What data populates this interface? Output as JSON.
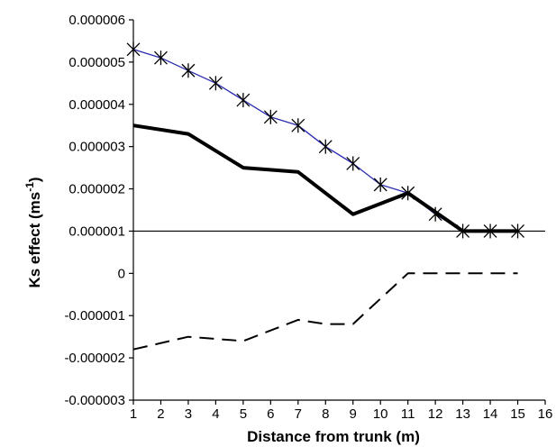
{
  "chart_data": {
    "type": "line",
    "title": "",
    "xlabel": "Distance from trunk (m)",
    "ylabel": "Ks effect (ms",
    "ylabel_superscript": "-1",
    "ylabel_suffix": ")",
    "xlim": [
      1,
      16
    ],
    "ylim": [
      -3e-06,
      6e-06
    ],
    "x_ticks": [
      "1",
      "2",
      "3",
      "4",
      "5",
      "6",
      "7",
      "8",
      "9",
      "10",
      "11",
      "12",
      "13",
      "14",
      "15",
      "16"
    ],
    "y_ticks": [
      "-0.000003",
      "-0.000002",
      "-0.000001",
      "0",
      "0.000001",
      "0.000002",
      "0.000003",
      "0.000004",
      "0.000005",
      "0.000006"
    ],
    "grid": false,
    "legend": "none",
    "series": [
      {
        "style": "blue-line-star-markers",
        "color": "#2b2bb0",
        "x": [
          1,
          2,
          3,
          4,
          5,
          6,
          7,
          8,
          9,
          10,
          11,
          12,
          13,
          14,
          15
        ],
        "y": [
          5.3e-06,
          5.1e-06,
          4.8e-06,
          4.5e-06,
          4.1e-06,
          3.7e-06,
          3.5e-06,
          3e-06,
          2.6e-06,
          2.1e-06,
          1.9e-06,
          1.4e-06,
          1e-06,
          1e-06,
          1e-06
        ]
      },
      {
        "style": "thick-solid",
        "color": "#000000",
        "x": [
          1,
          3,
          5,
          7,
          9,
          11,
          13,
          15
        ],
        "y": [
          3.5e-06,
          3.3e-06,
          2.5e-06,
          2.4e-06,
          1.4e-06,
          1.9e-06,
          1e-06,
          1e-06
        ]
      },
      {
        "style": "dashed",
        "color": "#000000",
        "x": [
          1,
          3,
          5,
          7,
          8,
          9,
          11,
          13,
          15
        ],
        "y": [
          -1.8e-06,
          -1.5e-06,
          -1.6e-06,
          -1.1e-06,
          -1.2e-06,
          -1.2e-06,
          0,
          0,
          0
        ]
      }
    ],
    "reference_line_y": 1e-06
  }
}
